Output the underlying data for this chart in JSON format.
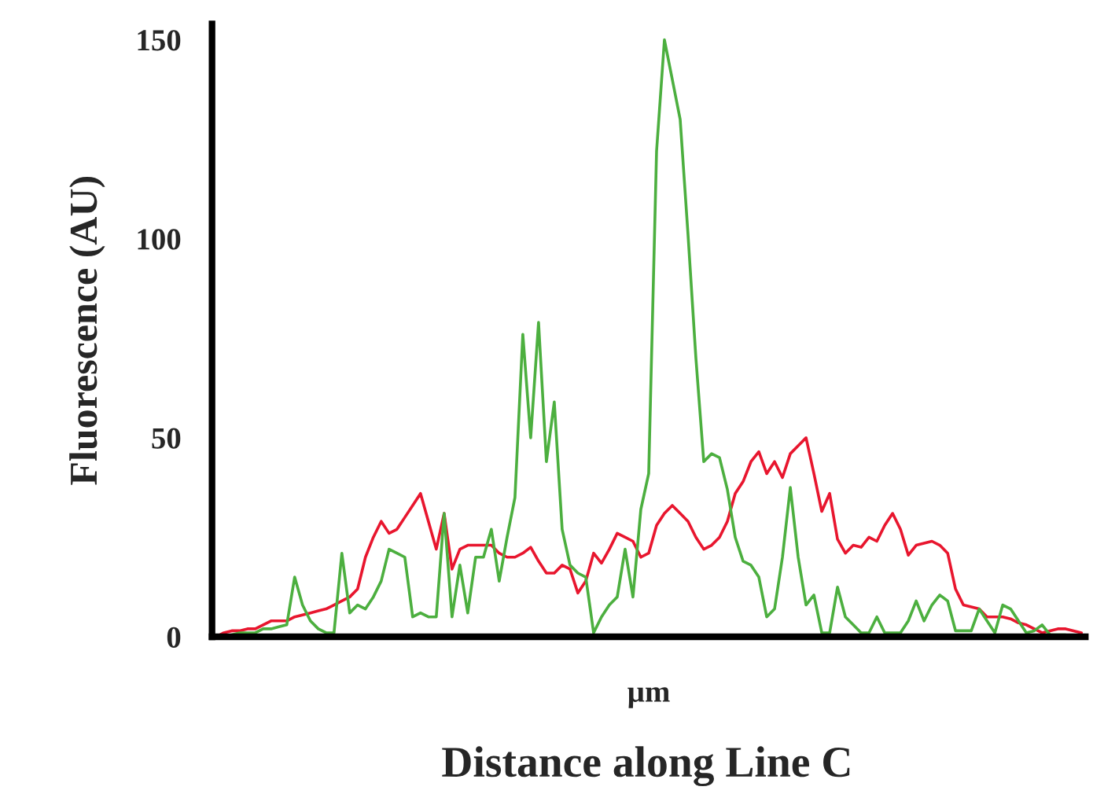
{
  "chart_data": {
    "type": "line",
    "ylabel": "Fluorescence (AU)",
    "xlabel": "µm",
    "annotations": [
      "Distance along Line C"
    ],
    "categories": [
      null,
      null,
      null,
      null,
      null,
      null,
      null,
      null,
      null,
      null,
      null,
      null,
      null,
      null,
      null,
      null,
      null,
      null,
      null,
      null,
      null,
      null,
      null,
      null,
      null,
      null,
      null,
      null,
      null,
      null,
      null,
      null,
      null,
      null,
      null,
      null,
      null,
      null,
      null,
      null,
      null,
      null,
      null,
      null,
      null,
      null,
      null,
      null,
      null,
      null,
      null,
      null,
      null,
      null,
      null,
      null,
      null,
      null,
      null,
      null,
      null,
      null,
      null,
      null,
      null,
      null,
      null,
      null,
      null,
      null,
      null,
      null,
      null,
      null,
      null,
      null,
      null,
      null,
      null,
      null,
      null,
      null,
      null,
      null,
      null,
      null,
      null,
      null,
      null,
      null,
      null,
      null,
      null,
      null,
      null,
      null,
      null,
      null,
      null,
      null,
      null,
      null,
      null,
      null,
      null,
      null,
      null,
      null,
      null,
      null,
      null
    ],
    "series": [
      {
        "color": "#e8162e",
        "values": [
          0,
          1,
          1.5,
          1.5,
          2,
          2,
          3,
          4,
          4,
          4,
          5,
          5.5,
          6,
          6.5,
          7,
          8,
          9,
          10,
          12,
          20,
          25,
          29,
          26,
          27,
          30,
          33,
          36,
          29,
          22,
          31,
          17,
          22,
          23,
          23,
          23,
          23,
          21,
          20,
          20,
          21,
          22.5,
          19,
          16,
          16,
          18,
          17,
          11,
          14,
          21,
          18.5,
          22,
          26,
          25,
          24,
          20,
          21,
          28,
          31,
          33,
          31,
          29,
          25,
          22,
          23,
          25,
          29,
          36,
          39,
          44,
          46.5,
          41,
          44,
          40,
          46,
          48,
          50,
          41,
          31.5,
          36,
          24.5,
          21,
          23,
          22.5,
          25,
          24,
          28,
          31,
          27,
          20.5,
          23,
          23.5,
          24,
          23,
          21,
          12,
          8,
          7.5,
          7,
          5,
          5,
          5,
          4.5,
          3.5,
          3,
          2,
          1,
          1.5,
          2,
          2,
          1.5,
          1
        ]
      },
      {
        "color": "#4caf3f",
        "values": [
          0,
          0,
          0.5,
          1,
          1,
          1,
          2,
          2,
          2.5,
          3,
          15,
          8,
          4,
          2,
          1,
          1,
          21,
          6,
          8,
          7,
          10,
          14,
          22,
          21,
          20,
          5,
          6,
          5,
          5,
          31,
          5,
          18,
          6,
          20,
          20,
          27,
          14,
          25,
          35,
          76,
          50,
          79,
          44,
          59,
          27,
          18,
          16,
          15,
          1,
          5,
          8,
          10,
          22,
          10,
          32,
          41,
          122,
          150,
          140,
          130,
          101,
          70,
          44,
          46,
          45,
          37,
          25,
          19,
          18,
          15,
          5,
          7,
          20,
          37.5,
          20,
          8,
          10.5,
          1,
          1,
          12.5,
          5,
          3,
          1,
          1,
          5,
          1,
          1,
          1,
          4,
          9,
          4,
          8,
          10.5,
          9,
          1.5,
          1.5,
          1.5,
          7,
          4,
          1,
          8,
          7,
          4,
          1,
          1.5,
          3,
          0.5,
          0.5,
          0.5,
          null,
          null
        ]
      }
    ],
    "ylim": [
      0,
      154
    ],
    "yticks": [
      0,
      50,
      100,
      150
    ],
    "grid": false,
    "legend": false,
    "tick_labels": "y"
  }
}
